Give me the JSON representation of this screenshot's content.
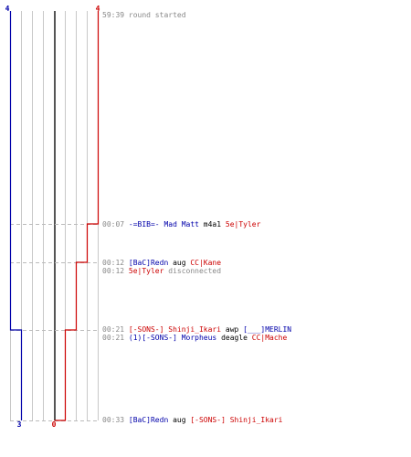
{
  "chart_data": {
    "type": "line",
    "teams": [
      {
        "name": "blue",
        "color": "#0000aa",
        "start_score": "4",
        "end_score": "3"
      },
      {
        "name": "red",
        "color": "#cc0000",
        "start_score": "4",
        "end_score": "0"
      }
    ],
    "blue_alive": [
      [
        0,
        4
      ],
      [
        21,
        3
      ],
      [
        33,
        3
      ]
    ],
    "red_alive": [
      [
        0,
        4
      ],
      [
        7,
        3
      ],
      [
        12,
        2
      ],
      [
        21,
        1
      ],
      [
        33,
        0
      ]
    ],
    "events": [
      {
        "time": "59:39",
        "parts": [
          {
            "text": "round started",
            "color": "gray"
          }
        ]
      },
      {
        "time": "00:07",
        "parts": [
          {
            "text": "-=BIB=- Mad Matt",
            "color": "blue"
          },
          {
            "text": "m4a1",
            "color": "black"
          },
          {
            "text": "5e|Tyler",
            "color": "red"
          }
        ]
      },
      {
        "time": "00:12",
        "parts": [
          {
            "text": "[BaC]Redn",
            "color": "blue"
          },
          {
            "text": "aug",
            "color": "black"
          },
          {
            "text": "CC|Kane",
            "color": "red"
          }
        ]
      },
      {
        "time": "00:12",
        "parts": [
          {
            "text": "5e|Tyler",
            "color": "red"
          },
          {
            "text": "disconnected",
            "color": "gray"
          }
        ]
      },
      {
        "time": "00:21",
        "parts": [
          {
            "text": "[-SONS-] Shinji_Ikari",
            "color": "red"
          },
          {
            "text": "awp",
            "color": "black"
          },
          {
            "text": "[___]MERLIN",
            "color": "blue"
          }
        ]
      },
      {
        "time": "00:21",
        "parts": [
          {
            "text": "(1)[-SONS-] Morpheus",
            "color": "blue"
          },
          {
            "text": "deagle",
            "color": "black"
          },
          {
            "text": "CC|Mache",
            "color": "red"
          }
        ]
      },
      {
        "time": "00:33",
        "parts": [
          {
            "text": "[BaC]Redn",
            "color": "blue"
          },
          {
            "text": "aug",
            "color": "black"
          },
          {
            "text": "[-SONS-] Shinji_Ikari",
            "color": "red"
          }
        ]
      }
    ],
    "colors": {
      "blue": "#0000aa",
      "red": "#cc0000",
      "gray": "#888888",
      "black": "#000000",
      "grid": "#c8c8c8",
      "dash": "#bbbbbb",
      "zero_line": "#555555"
    }
  }
}
